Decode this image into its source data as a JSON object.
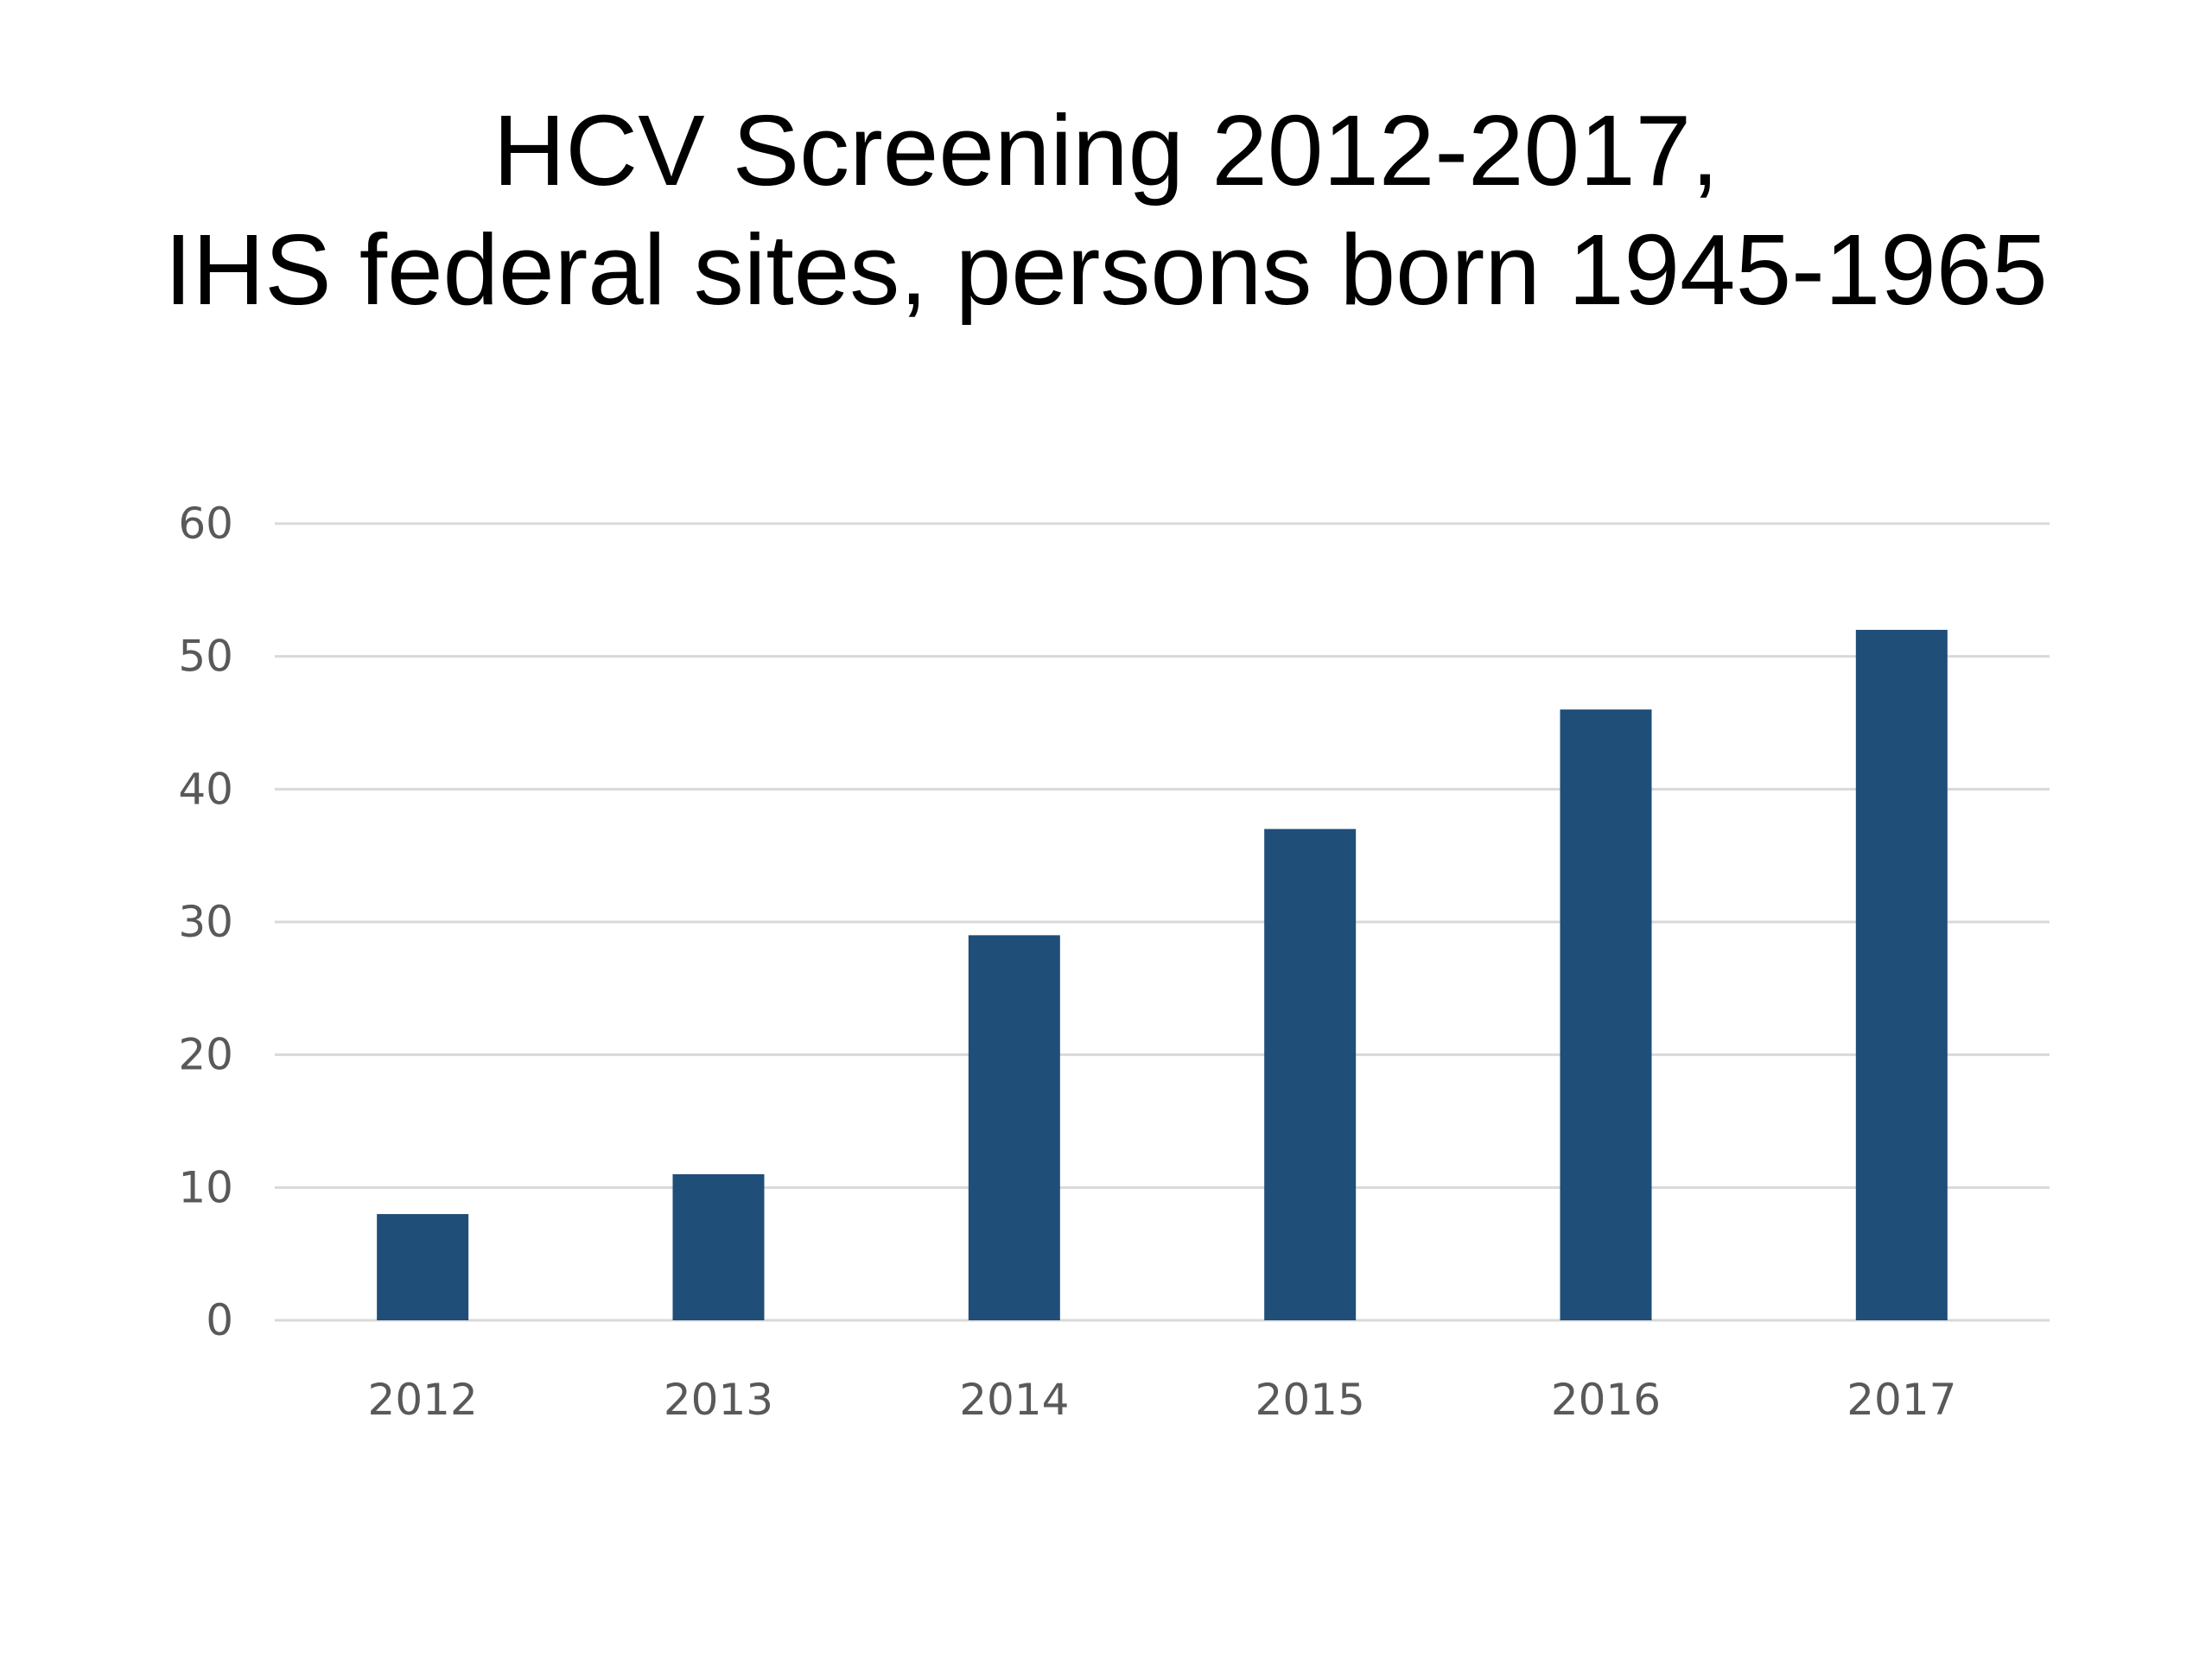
{
  "chart_data": {
    "type": "bar",
    "title_lines": [
      "HCV Screening 2012-2017,",
      "IHS federal sites, persons born 1945-1965"
    ],
    "categories": [
      "2012",
      "2013",
      "2014",
      "2015",
      "2016",
      "2017"
    ],
    "values": [
      8,
      11,
      29,
      37,
      46,
      52
    ],
    "ylim": [
      0,
      60
    ],
    "yticks": [
      0,
      10,
      20,
      30,
      40,
      50,
      60
    ],
    "grid": true,
    "bar_color": "#1f4e79",
    "grid_color": "#d9d9d9",
    "tick_label_color": "#595959"
  }
}
